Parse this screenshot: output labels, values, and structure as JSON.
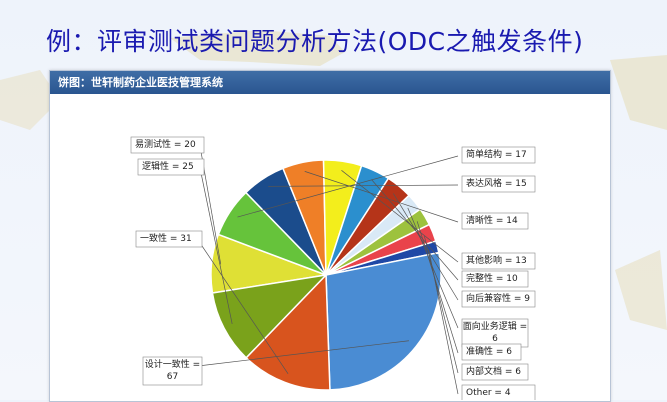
{
  "slide": {
    "title": "例：评审测试类问题分析方法(ODC之触发条件)"
  },
  "panel": {
    "header": "饼图：世轩制药企业医技管理系统"
  },
  "colors": {
    "title": "#1a1ab0",
    "header": "#2f5d97"
  },
  "chart_data": {
    "type": "pie",
    "slices": [
      {
        "label": "易测试性",
        "value": 20,
        "color": "#dfe035",
        "text": "易测试性 = 20"
      },
      {
        "label": "简单结构",
        "value": 17,
        "color": "#66c33b",
        "text": "简单结构 = 17"
      },
      {
        "label": "表达风格",
        "value": 15,
        "color": "#1b4c8c",
        "text": "表达风格 = 15"
      },
      {
        "label": "清晰性",
        "value": 14,
        "color": "#ef7f27",
        "text": "清晰性 = 14"
      },
      {
        "label": "其他影响",
        "value": 13,
        "color": "#f3ee1c",
        "text": "其他影响 = 13"
      },
      {
        "label": "完整性",
        "value": 10,
        "color": "#2b8fce",
        "text": "完整性 = 10"
      },
      {
        "label": "向后兼容性",
        "value": 9,
        "color": "#b53419",
        "text": "向后兼容性 = 9"
      },
      {
        "label": "面向业务逻辑",
        "value": 6,
        "color": "#d9e9f6",
        "text": "面向业务逻辑 = 6"
      },
      {
        "label": "准确性",
        "value": 6,
        "color": "#9dc23d",
        "text": "准确性 = 6"
      },
      {
        "label": "内部文档",
        "value": 6,
        "color": "#e9434b",
        "text": "内部文档 = 6"
      },
      {
        "label": "Other",
        "value": 4,
        "color": "#1f48a6",
        "text": "Other = 4"
      },
      {
        "label": "设计一致性",
        "value": 67,
        "color": "#4a8cd3",
        "text": "设计一致性 = 67"
      },
      {
        "label": "一致性",
        "value": 31,
        "color": "#d8541e",
        "text": "一致性 = 31"
      },
      {
        "label": "逻辑性",
        "value": 25,
        "color": "#7aa21b",
        "text": "逻辑性 = 25"
      }
    ]
  }
}
